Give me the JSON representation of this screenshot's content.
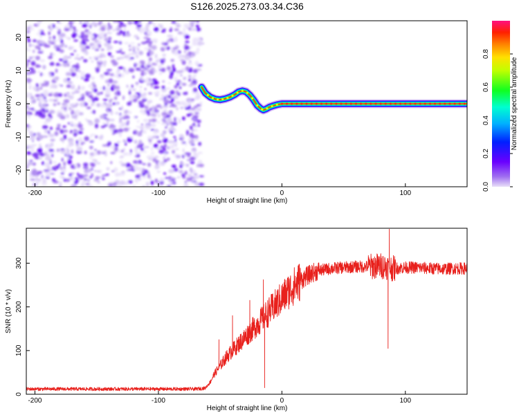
{
  "title": "S126.2025.273.03.34.C36",
  "chart_data": [
    {
      "type": "heatmap",
      "name": "spectrogram",
      "xlabel": "Height of straight line (km)",
      "ylabel": "Frequency (Hz)",
      "xlim": [
        -207,
        150
      ],
      "ylim": [
        -25,
        25
      ],
      "x_ticks": [
        -200,
        -100,
        0,
        100
      ],
      "y_ticks": [
        -20,
        -10,
        0,
        10,
        20
      ],
      "noise_region_x": [
        -207,
        -65
      ],
      "ridge": {
        "x": [
          -65,
          -62,
          -58,
          -54,
          -50,
          -46,
          -42,
          -38,
          -35,
          -32,
          -29,
          -26,
          -23,
          -20,
          -17,
          -15,
          -13,
          -10,
          -7,
          -4,
          0,
          10,
          20,
          30,
          40,
          50,
          60,
          70,
          80,
          90,
          100,
          110,
          120,
          130,
          140,
          150
        ],
        "y": [
          5,
          3.2,
          2,
          1.4,
          1.2,
          1.5,
          2,
          2.8,
          3.6,
          3.9,
          3.6,
          2.6,
          1.2,
          -0.5,
          -1.5,
          -1.9,
          -1.6,
          -1,
          -0.6,
          -0.3,
          0,
          0,
          0,
          0,
          0,
          0,
          0,
          0,
          0,
          0,
          0,
          0,
          0,
          0,
          0,
          0
        ]
      },
      "colorbar": {
        "label": "Normalized spectral amplitude",
        "range": [
          0,
          1
        ],
        "ticks": [
          "0.0",
          "0.2",
          "0.4",
          "0.6",
          "0.8"
        ],
        "tick_values": [
          0,
          0.2,
          0.4,
          0.6,
          0.8
        ]
      }
    },
    {
      "type": "line",
      "name": "snr",
      "xlabel": "Height of straight line (km)",
      "ylabel": "SNR (10 * v/v)",
      "xlim": [
        -207,
        150
      ],
      "ylim": [
        0,
        380
      ],
      "x_ticks": [
        -200,
        -100,
        0,
        100
      ],
      "y_ticks": [
        0,
        100,
        200,
        300
      ],
      "series": [
        {
          "name": "SNR",
          "color": "#e8201c",
          "x": [
            -207,
            -190,
            -170,
            -150,
            -130,
            -110,
            -90,
            -70,
            -62,
            -58,
            -55,
            -50,
            -45,
            -40,
            -35,
            -30,
            -25,
            -20,
            -15,
            -10,
            -5,
            0,
            5,
            10,
            15,
            20,
            25,
            30,
            40,
            50,
            60,
            70,
            80,
            85,
            90,
            100,
            110,
            120,
            130,
            140,
            150
          ],
          "y": [
            12,
            12,
            12,
            12,
            12,
            12,
            12,
            12,
            14,
            28,
            45,
            65,
            85,
            100,
            115,
            130,
            145,
            160,
            175,
            190,
            205,
            220,
            235,
            248,
            260,
            270,
            278,
            283,
            288,
            290,
            292,
            292,
            294,
            292,
            288,
            290,
            290,
            288,
            287,
            288,
            288
          ],
          "spikes": [
            {
              "x": -51,
              "y": 125
            },
            {
              "x": -40,
              "y": 180
            },
            {
              "x": -26,
              "y": 215
            },
            {
              "x": -15,
              "y": 262
            },
            {
              "x": -14,
              "y": 15
            },
            {
              "x": 86,
              "y": 105
            },
            {
              "x": 87,
              "y": 378
            }
          ]
        }
      ]
    }
  ]
}
